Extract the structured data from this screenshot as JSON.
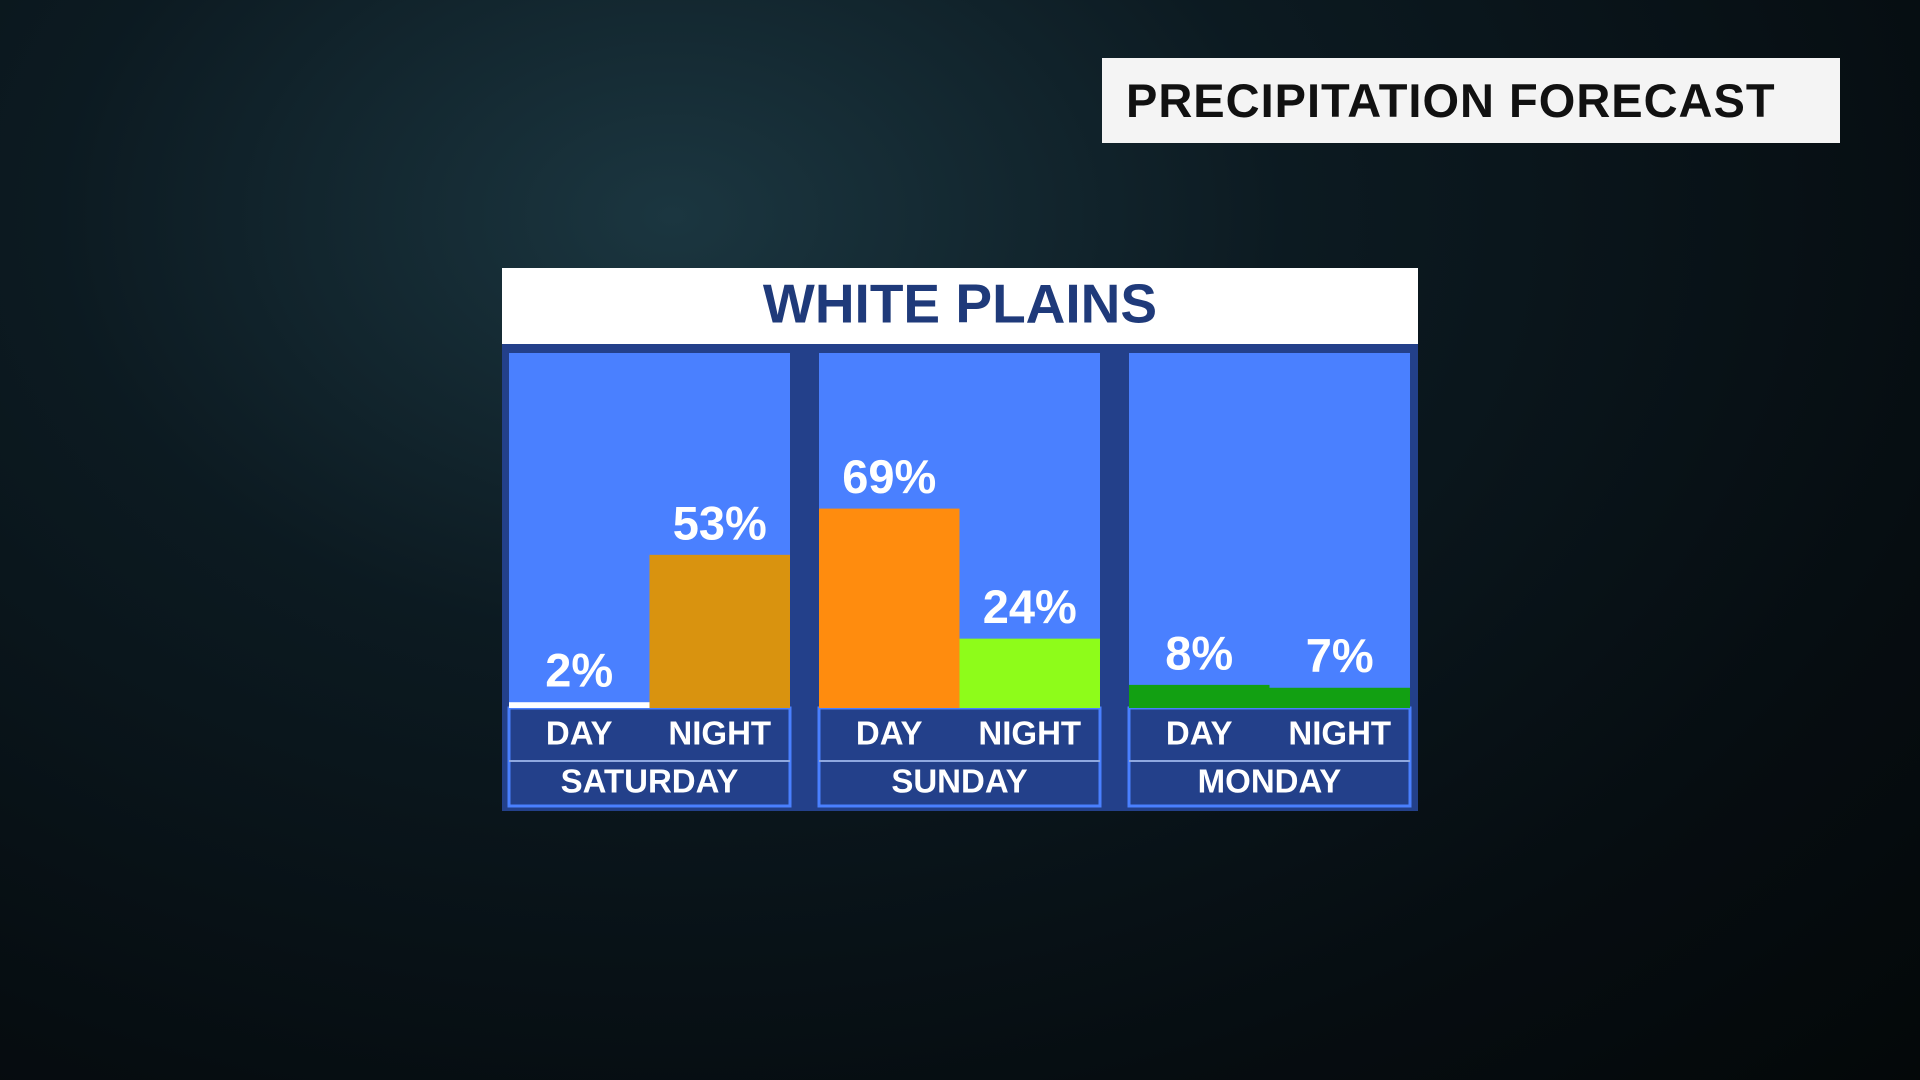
{
  "header": "PRECIPITATION FORECAST",
  "chart_data": {
    "type": "bar",
    "title": "WHITE PLAINS",
    "groups": [
      {
        "name": "SATURDAY",
        "categories": [
          "DAY",
          "NIGHT"
        ],
        "values": [
          2,
          53
        ],
        "value_labels": [
          "2%",
          "53%"
        ],
        "colors": [
          "#ffffff",
          "#d9930f"
        ]
      },
      {
        "name": "SUNDAY",
        "categories": [
          "DAY",
          "NIGHT"
        ],
        "values": [
          69,
          24
        ],
        "value_labels": [
          "69%",
          "24%"
        ],
        "colors": [
          "#ff8c0e",
          "#8efc1a"
        ]
      },
      {
        "name": "MONDAY",
        "categories": [
          "DAY",
          "NIGHT"
        ],
        "values": [
          8,
          7
        ],
        "value_labels": [
          "8%",
          "7%"
        ],
        "colors": [
          "#12a012",
          "#12a012"
        ]
      }
    ]
  }
}
